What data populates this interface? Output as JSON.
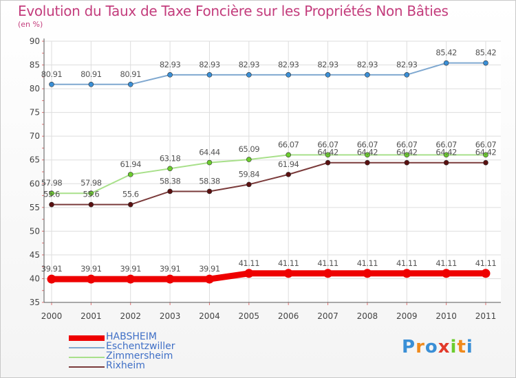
{
  "chart_data": {
    "type": "line",
    "title": "Evolution du Taux de Taxe Foncière sur les Propriétés Non Bâties",
    "subtitle": "(en %)",
    "categories": [
      "2000",
      "2001",
      "2002",
      "2003",
      "2004",
      "2005",
      "2006",
      "2007",
      "2008",
      "2009",
      "2010",
      "2011"
    ],
    "ylim": [
      35,
      90
    ],
    "yticks": [
      35,
      40,
      45,
      50,
      55,
      60,
      65,
      70,
      75,
      80,
      85,
      90
    ],
    "grid": true,
    "series": [
      {
        "name": "Eschentzwiller",
        "color": "#7fa8d0",
        "marker": "#3a8fd6",
        "values": [
          80.91,
          80.91,
          80.91,
          82.93,
          82.93,
          82.93,
          82.93,
          82.93,
          82.93,
          82.93,
          85.42,
          85.42
        ],
        "labels": [
          "80.91",
          "80.91",
          "80.91",
          "82.93",
          "82.93",
          "82.93",
          "82.93",
          "82.93",
          "82.93",
          "82.93",
          "85.42",
          "85.42"
        ]
      },
      {
        "name": "Zimmersheim",
        "color": "#a8e08a",
        "marker": "#6ccc2e",
        "values": [
          57.98,
          57.98,
          61.94,
          63.18,
          64.44,
          65.09,
          66.07,
          66.07,
          66.07,
          66.07,
          66.07,
          66.07
        ],
        "labels": [
          "57.98",
          "57.98",
          "61.94",
          "63.18",
          "64.44",
          "65.09",
          "66.07",
          "66.07",
          "66.07",
          "66.07",
          "66.07",
          "66.07"
        ]
      },
      {
        "name": "Rixheim",
        "color": "#7a3a3a",
        "marker": "#5a1010",
        "values": [
          55.6,
          55.6,
          55.6,
          58.38,
          58.38,
          59.84,
          61.94,
          64.42,
          64.42,
          64.42,
          64.42,
          64.42
        ],
        "labels": [
          "55.6",
          "55.6",
          "55.6",
          "58.38",
          "58.38",
          "59.84",
          "61.94",
          "64.42",
          "64.42",
          "64.42",
          "64.42",
          "64.42"
        ]
      },
      {
        "name": "HABSHEIM",
        "color": "#ee0000",
        "marker": "#ee0000",
        "values": [
          39.91,
          39.91,
          39.91,
          39.91,
          39.91,
          41.11,
          41.11,
          41.11,
          41.11,
          41.11,
          41.11,
          41.11
        ],
        "labels": [
          "39.91",
          "39.91",
          "39.91",
          "39.91",
          "39.91",
          "41.11",
          "41.11",
          "41.11",
          "41.11",
          "41.11",
          "41.11",
          "41.11"
        ]
      }
    ],
    "legend": [
      "HABSHEIM",
      "Eschentzwiller",
      "Zimmersheim",
      "Rixheim"
    ],
    "legend_position": "bottom-left"
  },
  "brand": {
    "letters": [
      "P",
      "r",
      "o",
      "x",
      "i",
      "t",
      "i"
    ],
    "colors": [
      "#3a8fd6",
      "#f08a1c",
      "#3a8fd6",
      "#e23a2a",
      "#6ccc2e",
      "#f08a1c",
      "#3a8fd6"
    ]
  }
}
